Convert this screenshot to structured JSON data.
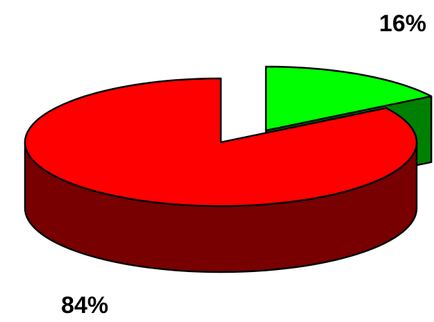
{
  "chart_data": {
    "type": "pie3d",
    "values": [
      16,
      84
    ],
    "value_labels": [
      "16%",
      "84%"
    ],
    "colors": [
      "#00ff00",
      "#ff0000"
    ],
    "side_colors": [
      "#008000",
      "#780000"
    ]
  }
}
